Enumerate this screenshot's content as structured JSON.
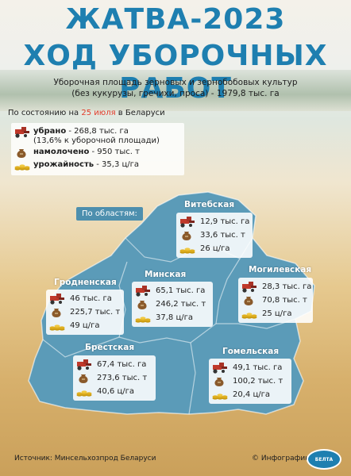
{
  "header": {
    "title_line1": "ЖАТВА-2023",
    "title_line2": "ХОД УБОРОЧНЫХ РАБОТ",
    "subtitle_line1": "Уборочная площадь зерновых и зернобобовых культур",
    "subtitle_line2": "(без кукурузы, гречихи, проса) - 1979,8 тыс. га"
  },
  "summary": {
    "date_prefix": "По состоянию на ",
    "date": "25 июля",
    "date_suffix": " в Беларуси",
    "harvested_label": "убрано",
    "harvested_value": " - 268,8 тыс. га",
    "harvested_note": "(13,6% к уборочной площади)",
    "threshed_label": "намолочено",
    "threshed_value": " - 950 тыс. т",
    "yield_label": "урожайность",
    "yield_value": " - 35,3 ц/га"
  },
  "by_regions_label": "По областям:",
  "regions": [
    {
      "name": "Витебская",
      "area": "12,9 тыс. га",
      "grain": "33,6 тыс. т",
      "yield": "26 ц/га"
    },
    {
      "name": "Могилевская",
      "area": "28,3 тыс. га",
      "grain": "70,8 тыс. т",
      "yield": "25 ц/га"
    },
    {
      "name": "Минская",
      "area": "65,1 тыс. га",
      "grain": "246,2 тыс. т",
      "yield": "37,8 ц/га"
    },
    {
      "name": "Гродненская",
      "area": "46 тыс. га",
      "grain": "225,7 тыс. т",
      "yield": "49 ц/га"
    },
    {
      "name": "Брестская",
      "area": "67,4 тыс. га",
      "grain": "273,6 тыс. т",
      "yield": "40,6 ц/га"
    },
    {
      "name": "Гомельская",
      "area": "49,1 тыс. га",
      "grain": "100,2 тыс. т",
      "yield": "20,4 ц/га"
    }
  ],
  "footer": {
    "source": "Источник: Минсельхозпрод Беларуси",
    "brand": "© Инфографика",
    "logo_text": "БЕЛТА"
  },
  "colors": {
    "title": "#1e7fb0",
    "map_fill": "#5b9bb8",
    "accent_date": "#e23b2a",
    "combine_icon": "#c0392b",
    "sack_icon": "#8a5a2b",
    "coins_icon": "#e0b020"
  }
}
